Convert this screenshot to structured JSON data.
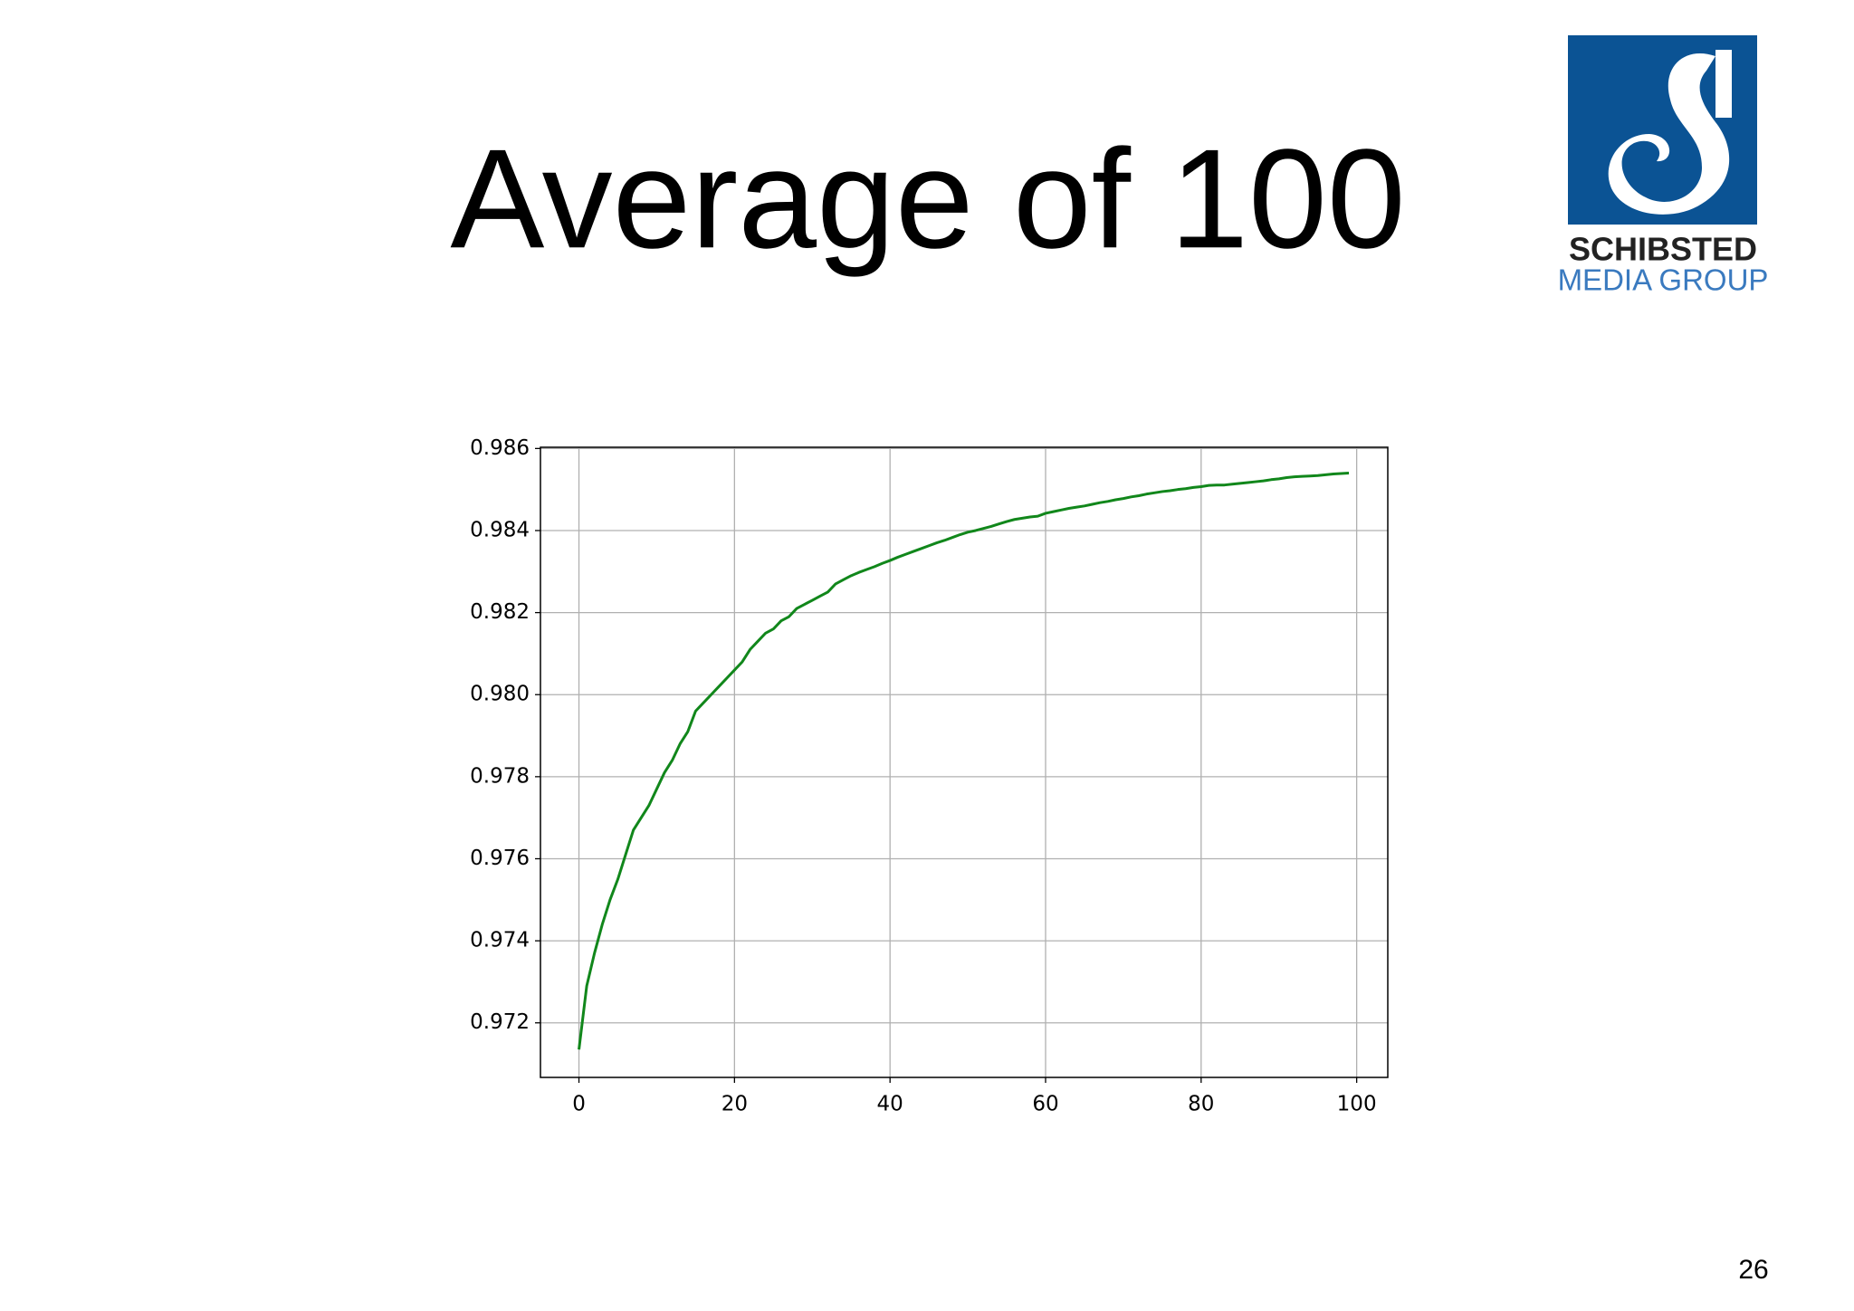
{
  "title": "Average of 100",
  "logo": {
    "name": "SCHIBSTED",
    "subtitle": "MEDIA GROUP"
  },
  "page_number": "26",
  "chart_data": {
    "type": "line",
    "color": "#11871b",
    "grid": true,
    "xlim": [
      -4.95,
      104
    ],
    "ylim": [
      0.97067,
      0.98603
    ],
    "xticks": [
      0,
      20,
      40,
      60,
      80,
      100
    ],
    "yticks": [
      {
        "value": 0.972,
        "label": "0.972"
      },
      {
        "value": 0.974,
        "label": "0.974"
      },
      {
        "value": 0.976,
        "label": "0.976"
      },
      {
        "value": 0.978,
        "label": "0.978"
      },
      {
        "value": 0.98,
        "label": "0.980"
      },
      {
        "value": 0.982,
        "label": "0.982"
      },
      {
        "value": 0.984,
        "label": "0.984"
      },
      {
        "value": 0.986,
        "label": "0.986"
      }
    ],
    "x": [
      0,
      1,
      2,
      3,
      4,
      5,
      6,
      7,
      8,
      9,
      10,
      11,
      12,
      13,
      14,
      15,
      16,
      17,
      18,
      19,
      20,
      21,
      22,
      23,
      24,
      25,
      26,
      27,
      28,
      29,
      30,
      31,
      32,
      33,
      34,
      35,
      36,
      37,
      38,
      39,
      40,
      41,
      42,
      43,
      44,
      45,
      46,
      47,
      48,
      49,
      50,
      51,
      52,
      53,
      54,
      55,
      56,
      57,
      58,
      59,
      60,
      61,
      62,
      63,
      64,
      65,
      66,
      67,
      68,
      69,
      70,
      71,
      72,
      73,
      74,
      75,
      76,
      77,
      78,
      79,
      80,
      81,
      82,
      83,
      84,
      85,
      86,
      87,
      88,
      89,
      90,
      91,
      92,
      93,
      94,
      95,
      96,
      97,
      98,
      99
    ],
    "values": [
      0.97135,
      0.9729,
      0.9737,
      0.9744,
      0.975,
      0.9755,
      0.9761,
      0.9767,
      0.977,
      0.9773,
      0.9777,
      0.9781,
      0.9784,
      0.9788,
      0.9791,
      0.9796,
      0.9798,
      0.98,
      0.9802,
      0.9804,
      0.9806,
      0.9808,
      0.9811,
      0.9813,
      0.9815,
      0.9816,
      0.9818,
      0.9819,
      0.9821,
      0.9822,
      0.9823,
      0.9824,
      0.9825,
      0.9827,
      0.9828,
      0.9829,
      0.98298,
      0.98305,
      0.98312,
      0.9832,
      0.98327,
      0.98335,
      0.98342,
      0.98349,
      0.98356,
      0.98363,
      0.9837,
      0.98376,
      0.98383,
      0.9839,
      0.98396,
      0.984,
      0.98405,
      0.9841,
      0.98416,
      0.98422,
      0.98427,
      0.9843,
      0.98433,
      0.98435,
      0.98442,
      0.98446,
      0.9845,
      0.98454,
      0.98457,
      0.9846,
      0.98464,
      0.98468,
      0.98471,
      0.98475,
      0.98478,
      0.98482,
      0.98485,
      0.98489,
      0.98492,
      0.98495,
      0.98497,
      0.985,
      0.98502,
      0.98505,
      0.98507,
      0.9851,
      0.98511,
      0.98511,
      0.98513,
      0.98515,
      0.98517,
      0.98519,
      0.98521,
      0.98524,
      0.98526,
      0.98529,
      0.98531,
      0.98532,
      0.98533,
      0.98534,
      0.98536,
      0.98538,
      0.98539,
      0.9854
    ]
  }
}
